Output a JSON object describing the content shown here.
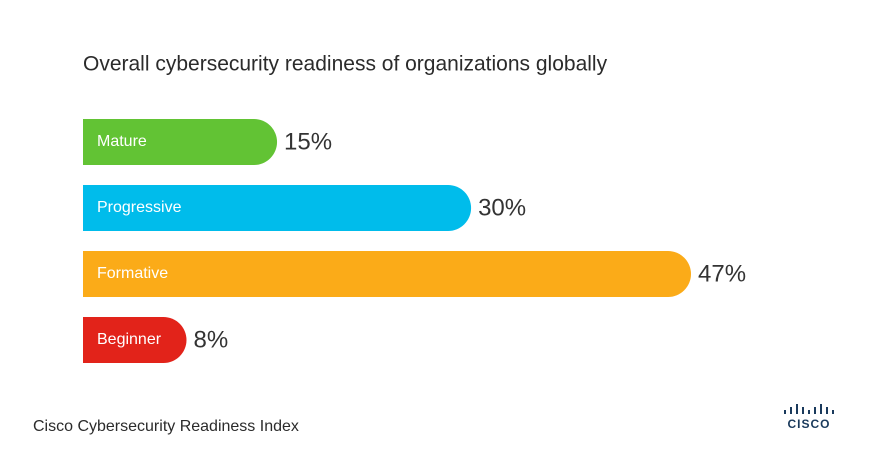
{
  "chart_data": {
    "type": "hbar",
    "title": "Overall cybersecurity readiness of organizations globally",
    "categories": [
      "Mature",
      "Progressive",
      "Formative",
      "Beginner"
    ],
    "values": [
      15,
      30,
      47,
      8
    ],
    "value_labels": [
      "15%",
      "30%",
      "47%",
      "8%"
    ],
    "colors": [
      "#62c334",
      "#00bceb",
      "#fbab18",
      "#e2231a"
    ]
  },
  "footer": {
    "source": "Cisco Cybersecurity Readiness Index",
    "logo": "CISCO"
  }
}
